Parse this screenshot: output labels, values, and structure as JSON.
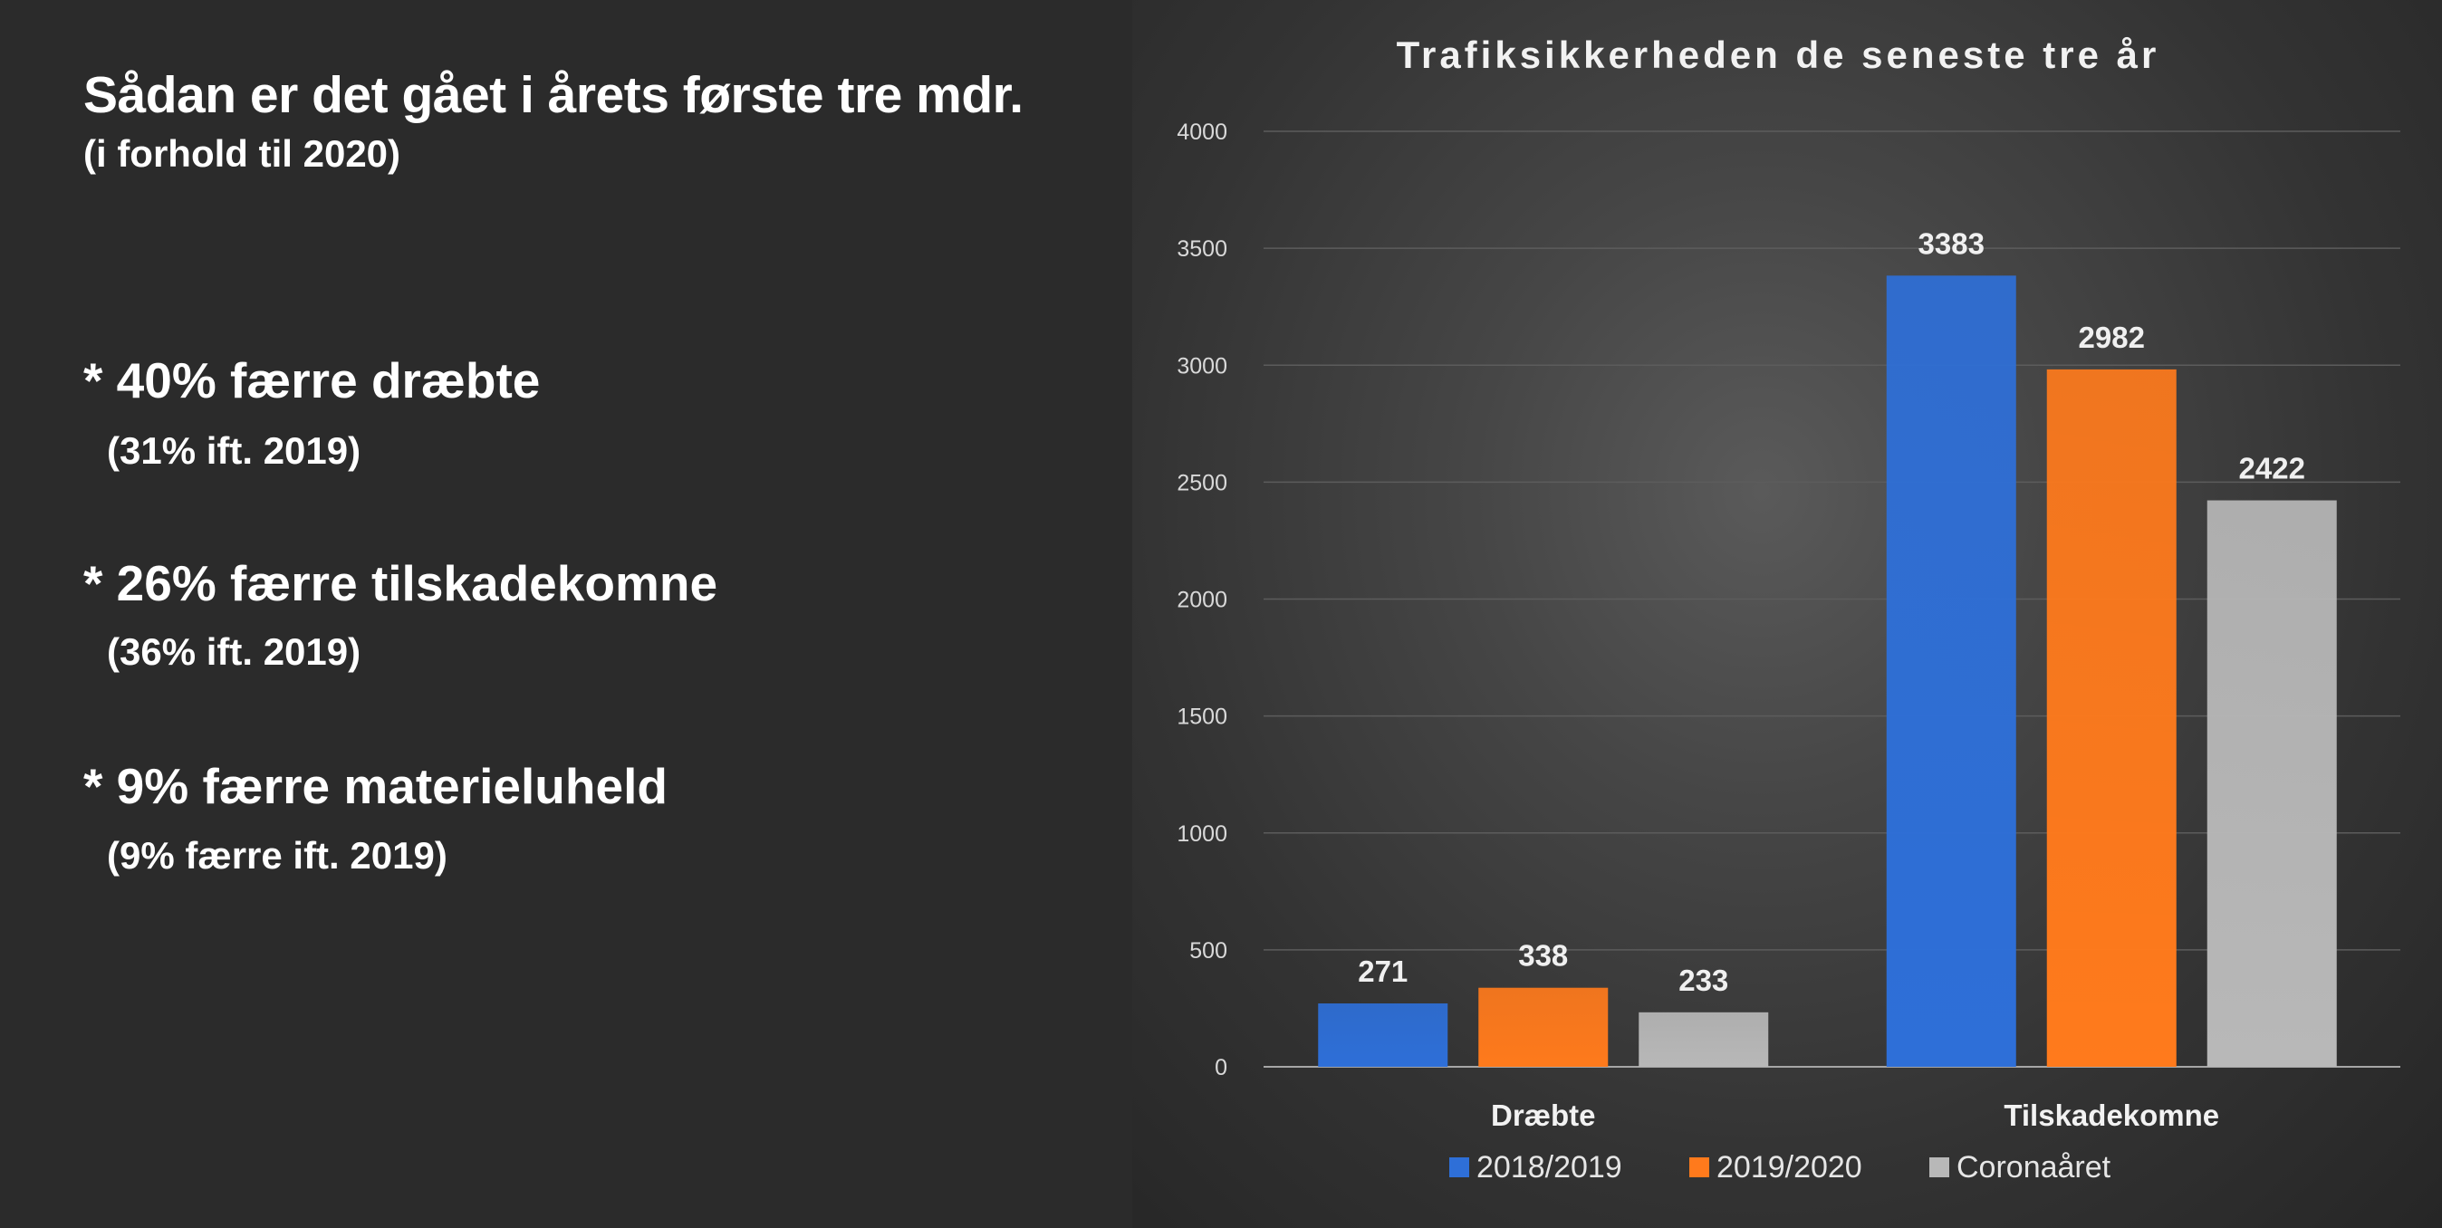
{
  "summary": {
    "title": "Sådan er det gået i årets første tre mdr.",
    "subtitle": "(i forhold til 2020)",
    "items": [
      {
        "headline": "* 40% færre dræbte",
        "note": "(31% ift. 2019)"
      },
      {
        "headline": "* 26% færre tilskadekomne",
        "note": "(36% ift. 2019)"
      },
      {
        "headline": "* 9% færre materieluheld",
        "note": "(9% færre ift. 2019)"
      }
    ]
  },
  "chart_data": {
    "type": "bar",
    "title": "Trafiksikkerheden  de seneste  tre år",
    "categories": [
      "Dræbte",
      "Tilskadekomne"
    ],
    "series": [
      {
        "name": "2018/2019",
        "values": [
          271,
          3383
        ],
        "color": "#2e6fd8"
      },
      {
        "name": "2019/2020",
        "values": [
          338,
          2982
        ],
        "color": "#ff7a1c"
      },
      {
        "name": "Coronaåret",
        "values": [
          233,
          2422
        ],
        "color": "#b8b8b8"
      }
    ],
    "yticks": [
      "0",
      "500",
      "1000",
      "1500",
      "2000",
      "2500",
      "3000",
      "3500",
      "4000"
    ],
    "ylim": [
      0,
      4000
    ],
    "grid": true,
    "legend": "bottom",
    "data_labels": true
  }
}
